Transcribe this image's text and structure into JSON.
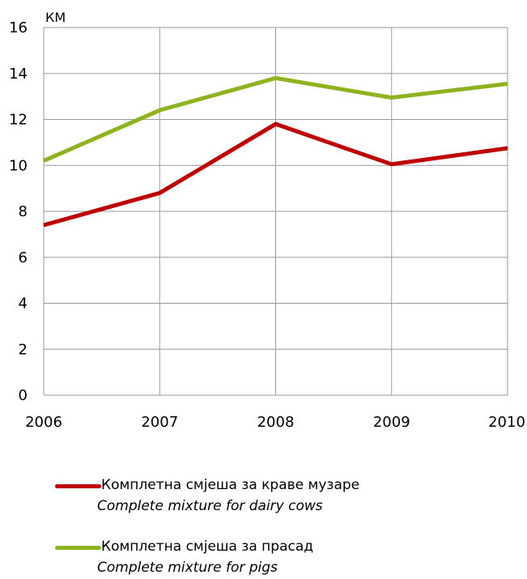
{
  "chart_data": {
    "type": "line",
    "unit_label": "КМ",
    "x": [
      "2006",
      "2007",
      "2008",
      "2009",
      "2010"
    ],
    "ylim": [
      0,
      16
    ],
    "yticks": [
      0,
      2,
      4,
      6,
      8,
      10,
      12,
      14,
      16
    ],
    "grid": true,
    "legend_position": "bottom",
    "series": [
      {
        "name": "Комплетна смјеша за краве музаре",
        "name_en": "Complete mixture for dairy cows",
        "color": "#c00000",
        "values": [
          7.4,
          8.8,
          11.8,
          10.05,
          10.75
        ]
      },
      {
        "name": "Комплетна смјеша за прасад",
        "name_en": "Complete mixture for pigs",
        "color": "#8db41e",
        "values": [
          10.2,
          12.4,
          13.8,
          12.95,
          13.55
        ]
      }
    ]
  }
}
